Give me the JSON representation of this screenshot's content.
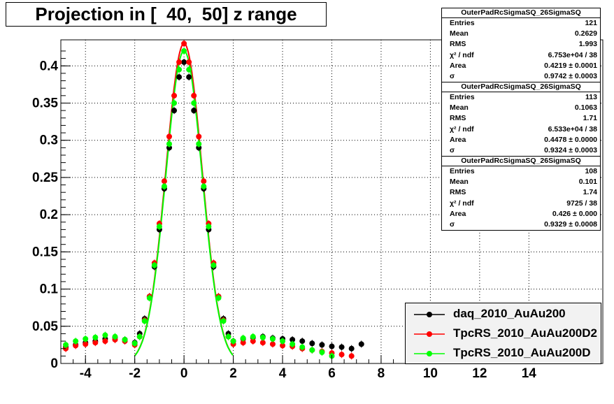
{
  "title": "Projection in [  40,  50] z range",
  "colors": {
    "daq": "#000000",
    "d2": "#ff0000",
    "d": "#00ff00"
  },
  "stats_boxes": [
    {
      "header": "OuterPadRcSigmaSQ_26SigmaSQ",
      "rows": [
        {
          "key": "Entries",
          "value": "121"
        },
        {
          "key": "Mean",
          "value": "0.2629"
        },
        {
          "key": "RMS",
          "value": "1.993"
        },
        {
          "key": "χ² / ndf",
          "value": "6.753e+04 / 38"
        },
        {
          "key": "Area",
          "value": "0.4219 ± 0.0001"
        },
        {
          "key": "σ",
          "value": "0.9742 ± 0.0003"
        }
      ]
    },
    {
      "header": "OuterPadRcSigmaSQ_26SigmaSQ",
      "rows": [
        {
          "key": "Entries",
          "value": "113"
        },
        {
          "key": "Mean",
          "value": "0.1063"
        },
        {
          "key": "RMS",
          "value": "1.71"
        },
        {
          "key": "χ² / ndf",
          "value": "6.533e+04 / 38"
        },
        {
          "key": "Area",
          "value": "0.4478 ± 0.0000"
        },
        {
          "key": "σ",
          "value": "0.9324 ± 0.0003"
        }
      ]
    },
    {
      "header": "OuterPadRcSigmaSQ_26SigmaSQ",
      "rows": [
        {
          "key": "Entries",
          "value": "108"
        },
        {
          "key": "Mean",
          "value": "0.101"
        },
        {
          "key": "RMS",
          "value": "1.74"
        },
        {
          "key": "χ² / ndf",
          "value": "9725 / 38"
        },
        {
          "key": "Area",
          "value": "0.426 ± 0.000"
        },
        {
          "key": "σ",
          "value": "0.9329 ± 0.0008"
        }
      ]
    }
  ],
  "legend": [
    {
      "label": "daq_2010_AuAu200",
      "color": "#000000"
    },
    {
      "label": "TpcRS_2010_AuAu200D2",
      "color": "#ff0000"
    },
    {
      "label": "TpcRS_2010_AuAu200D",
      "color": "#00ff00"
    }
  ],
  "chart_data": {
    "type": "scatter",
    "title": "Projection in [  40,  50] z range",
    "xlabel": "",
    "ylabel": "",
    "xlim": [
      -5,
      17
    ],
    "ylim": [
      0,
      0.435
    ],
    "grid": true,
    "legend_position": "bottom-right",
    "x_ticks": [
      "-4",
      "-2",
      "0",
      "2",
      "4",
      "6",
      "8",
      "10",
      "12",
      "14"
    ],
    "y_ticks": [
      "0",
      "0.05",
      "0.1",
      "0.15",
      "0.2",
      "0.25",
      "0.3",
      "0.35",
      "0.4"
    ],
    "x": [
      -4.8,
      -4.4,
      -4.0,
      -3.6,
      -3.2,
      -2.8,
      -2.4,
      -2.0,
      -1.8,
      -1.6,
      -1.4,
      -1.2,
      -1.0,
      -0.8,
      -0.6,
      -0.4,
      -0.2,
      0.0,
      0.2,
      0.4,
      0.6,
      0.8,
      1.0,
      1.2,
      1.4,
      1.6,
      1.8,
      2.0,
      2.4,
      2.8,
      3.2,
      3.6,
      4.0,
      4.4,
      4.8,
      5.2,
      5.6,
      6.0,
      6.4,
      6.8,
      7.2
    ],
    "series": [
      {
        "name": "daq_2010_AuAu200",
        "values": [
          0.022,
          0.025,
          0.028,
          0.03,
          0.033,
          0.035,
          0.032,
          0.028,
          0.04,
          0.06,
          0.09,
          0.13,
          0.18,
          0.235,
          0.29,
          0.34,
          0.385,
          0.405,
          0.385,
          0.34,
          0.29,
          0.235,
          0.18,
          0.13,
          0.09,
          0.06,
          0.04,
          0.03,
          0.033,
          0.035,
          0.036,
          0.034,
          0.033,
          0.032,
          0.03,
          0.027,
          0.025,
          0.023,
          0.022,
          0.02,
          0.026
        ]
      },
      {
        "name": "TpcRS_2010_AuAu200D2",
        "values": [
          0.02,
          0.024,
          0.026,
          0.028,
          0.03,
          0.032,
          0.03,
          0.025,
          0.036,
          0.058,
          0.09,
          0.135,
          0.188,
          0.245,
          0.305,
          0.36,
          0.405,
          0.43,
          0.405,
          0.36,
          0.305,
          0.245,
          0.188,
          0.135,
          0.09,
          0.058,
          0.036,
          0.026,
          0.028,
          0.03,
          0.028,
          0.026,
          0.024,
          0.023,
          0.02,
          0.018,
          0.016,
          0.014,
          0.012,
          0.01,
          null
        ]
      },
      {
        "name": "TpcRS_2010_AuAu200D",
        "values": [
          0.025,
          0.03,
          0.033,
          0.035,
          0.038,
          0.036,
          0.032,
          0.027,
          0.036,
          0.057,
          0.088,
          0.132,
          0.184,
          0.238,
          0.295,
          0.35,
          0.395,
          0.42,
          0.395,
          0.35,
          0.295,
          0.238,
          0.184,
          0.132,
          0.088,
          0.057,
          0.036,
          0.03,
          0.034,
          0.036,
          0.035,
          0.033,
          0.03,
          0.026,
          0.022,
          0.018,
          0.015,
          0.01,
          null,
          null,
          null
        ]
      }
    ],
    "fit_curves": true
  }
}
